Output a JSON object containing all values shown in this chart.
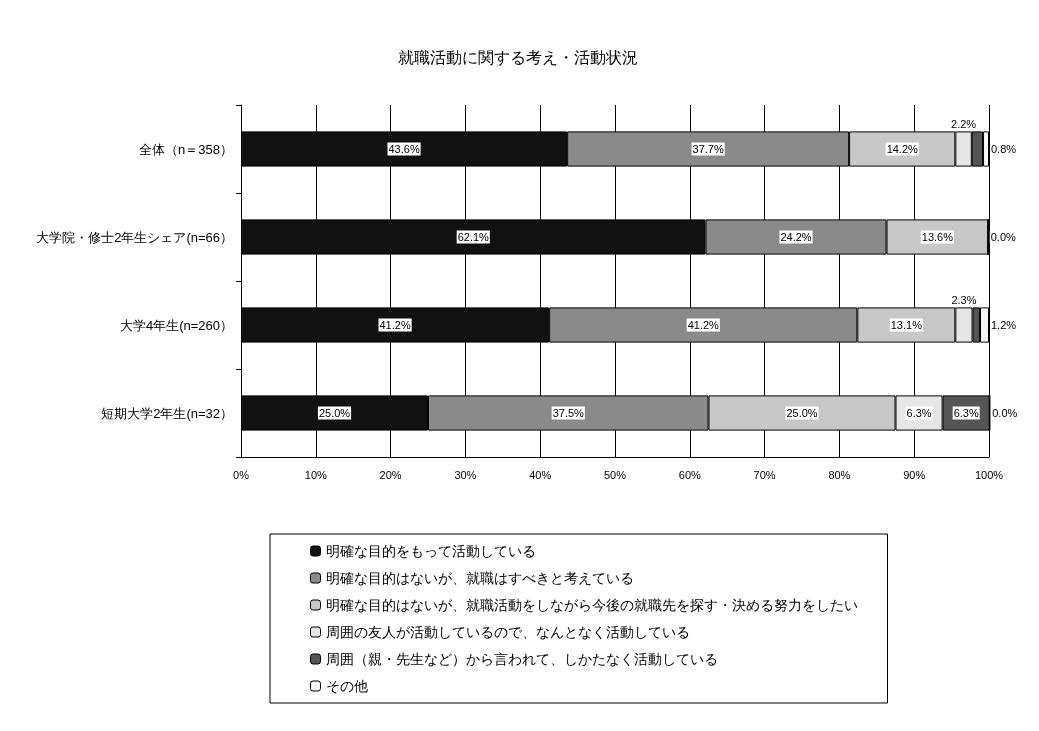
{
  "chart_data": {
    "type": "bar",
    "orientation": "horizontal",
    "stacked": true,
    "title": "就職活動に関する考え・活動状況",
    "categories": [
      "全体（n＝358）",
      "大学院・修士2年生シェア(n=66）",
      "大学4年生(n=260）",
      "短期大学2年生(n=32）"
    ],
    "series": [
      {
        "name": "明確な目的をもって活動している",
        "color": "#111111",
        "values": [
          43.6,
          62.1,
          41.2,
          25.0
        ],
        "value_labels": [
          "43.6%",
          "62.1%",
          "41.2%",
          "25.0%"
        ]
      },
      {
        "name": "明確な目的はないが、就職はすべきと考えている",
        "color": "#8a8a8a",
        "values": [
          37.7,
          24.2,
          41.2,
          37.5
        ],
        "value_labels": [
          "37.7%",
          "24.2%",
          "41.2%",
          "37.5%"
        ]
      },
      {
        "name": "明確な目的はないが、就職活動をしながら今後の就職先を探す・決める努力をしたい",
        "color": "#c8c8c8",
        "values": [
          14.2,
          13.6,
          13.1,
          25.0
        ],
        "value_labels": [
          "14.2%",
          "13.6%",
          "13.1%",
          "25.0%"
        ]
      },
      {
        "name": "周囲の友人が活動しているので、なんとなく活動している",
        "color": "#e6e6e6",
        "values": [
          2.2,
          0.0,
          2.3,
          6.3
        ],
        "value_labels": [
          "2.2%",
          null,
          "2.3%",
          "6.3%"
        ]
      },
      {
        "name": "周囲（親・先生など）から言われて、しかたなく活動している",
        "color": "#555555",
        "values": [
          1.5,
          0.0,
          1.0,
          6.3
        ],
        "value_labels": [
          null,
          null,
          null,
          "6.3%"
        ]
      },
      {
        "name": "その他",
        "color": "#f7f7f7",
        "values": [
          0.8,
          0.0,
          1.2,
          0.0
        ],
        "value_labels": [
          "0.8%",
          "0.0%",
          "1.2%",
          "0.0%"
        ]
      }
    ],
    "xlim": [
      0,
      100
    ],
    "xticks": [
      {
        "value": 0,
        "label": "0%"
      },
      {
        "value": 10,
        "label": "10%"
      },
      {
        "value": 20,
        "label": "20%"
      },
      {
        "value": 30,
        "label": "30%"
      },
      {
        "value": 40,
        "label": "40%"
      },
      {
        "value": 50,
        "label": "50%"
      },
      {
        "value": 60,
        "label": "60%"
      },
      {
        "value": 70,
        "label": "70%"
      },
      {
        "value": 80,
        "label": "80%"
      },
      {
        "value": 90,
        "label": "90%"
      },
      {
        "value": 100,
        "label": "100%"
      }
    ],
    "grid": "x",
    "legend": "bottom"
  }
}
